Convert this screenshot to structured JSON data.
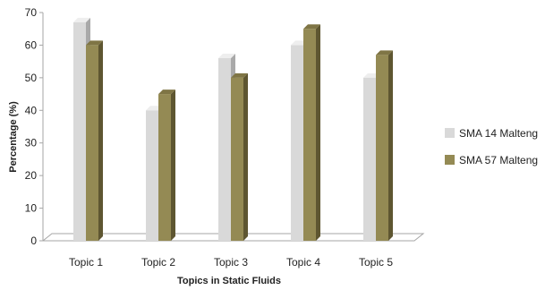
{
  "chart_data": {
    "type": "bar",
    "categories": [
      "Topic 1",
      "Topic 2",
      "Topic 3",
      "Topic 4",
      "Topic 5"
    ],
    "series": [
      {
        "name": "SMA 14 Malteng",
        "values": [
          67,
          40,
          56,
          60,
          50
        ],
        "color": "#d9d9d9",
        "side_color": "#a9a9a9",
        "top_color": "#eeeeee"
      },
      {
        "name": "SMA 57 Malteng",
        "values": [
          60,
          45,
          50,
          65,
          57
        ],
        "color": "#948a54",
        "side_color": "#5e5631",
        "top_color": "#7f7545"
      }
    ],
    "xlabel": "Topics in Static Fluids",
    "ylabel": "Percentage (%)",
    "ylim": [
      0,
      70
    ],
    "yticks": [
      0,
      10,
      20,
      30,
      40,
      50,
      60,
      70
    ],
    "grid": false,
    "legend_position": "right"
  }
}
